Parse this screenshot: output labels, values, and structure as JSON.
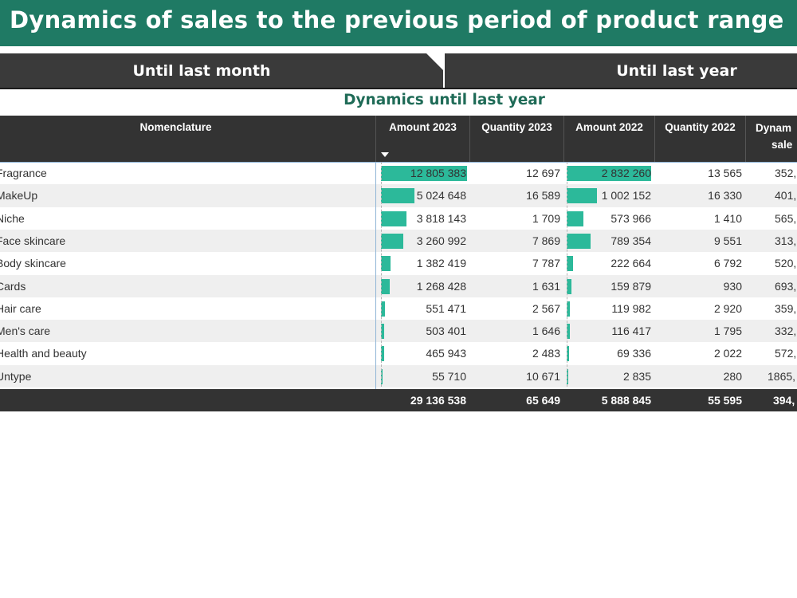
{
  "header": {
    "title": "Dynamics of sales to the previous period of product range"
  },
  "tabs": [
    {
      "label": "Until last month"
    },
    {
      "label": "Until last year"
    }
  ],
  "subtitle": "Dynamics until last year",
  "table": {
    "columns": {
      "name": "Nomenclature",
      "amount_2023": "Amount 2023",
      "quantity_2023": "Quantity 2023",
      "amount_2022": "Amount 2022",
      "quantity_2022": "Quantity 2022",
      "dynamics_line1": "Dynam",
      "dynamics_line2": "sale"
    },
    "rows": [
      {
        "name": "Fragrance",
        "amount_2023": "12 805 383",
        "quantity_2023": "12 697",
        "amount_2022": "2 832 260",
        "quantity_2022": "13 565",
        "dynamics": "352,",
        "amount_2023_value": 12805383,
        "amount_2022_value": 2832260
      },
      {
        "name": "MakeUp",
        "amount_2023": "5 024 648",
        "quantity_2023": "16 589",
        "amount_2022": "1 002 152",
        "quantity_2022": "16 330",
        "dynamics": "401,",
        "amount_2023_value": 5024648,
        "amount_2022_value": 1002152
      },
      {
        "name": "Niche",
        "amount_2023": "3 818 143",
        "quantity_2023": "1 709",
        "amount_2022": "573 966",
        "quantity_2022": "1 410",
        "dynamics": "565,",
        "amount_2023_value": 3818143,
        "amount_2022_value": 573966
      },
      {
        "name": "Face skincare",
        "amount_2023": "3 260 992",
        "quantity_2023": "7 869",
        "amount_2022": "789 354",
        "quantity_2022": "9 551",
        "dynamics": "313,",
        "amount_2023_value": 3260992,
        "amount_2022_value": 789354
      },
      {
        "name": "Body skincare",
        "amount_2023": "1 382 419",
        "quantity_2023": "7 787",
        "amount_2022": "222 664",
        "quantity_2022": "6 792",
        "dynamics": "520,",
        "amount_2023_value": 1382419,
        "amount_2022_value": 222664
      },
      {
        "name": "Cards",
        "amount_2023": "1 268 428",
        "quantity_2023": "1 631",
        "amount_2022": "159 879",
        "quantity_2022": "930",
        "dynamics": "693,",
        "amount_2023_value": 1268428,
        "amount_2022_value": 159879
      },
      {
        "name": "Hair care",
        "amount_2023": "551 471",
        "quantity_2023": "2 567",
        "amount_2022": "119 982",
        "quantity_2022": "2 920",
        "dynamics": "359,",
        "amount_2023_value": 551471,
        "amount_2022_value": 119982
      },
      {
        "name": "Men's care",
        "amount_2023": "503 401",
        "quantity_2023": "1 646",
        "amount_2022": "116 417",
        "quantity_2022": "1 795",
        "dynamics": "332,",
        "amount_2023_value": 503401,
        "amount_2022_value": 116417
      },
      {
        "name": "Health and beauty",
        "amount_2023": "465 943",
        "quantity_2023": "2 483",
        "amount_2022": "69 336",
        "quantity_2022": "2 022",
        "dynamics": "572,",
        "amount_2023_value": 465943,
        "amount_2022_value": 69336
      },
      {
        "name": "Untype",
        "amount_2023": "55 710",
        "quantity_2023": "10 671",
        "amount_2022": "2 835",
        "quantity_2022": "280",
        "dynamics": "1865,",
        "amount_2023_value": 55710,
        "amount_2022_value": 2835
      }
    ],
    "total": {
      "amount_2023": "29 136 538",
      "quantity_2023": "65 649",
      "amount_2022": "5 888 845",
      "quantity_2022": "55 595",
      "dynamics": "394,"
    }
  },
  "colors": {
    "title_bg": "#1f7a64",
    "bar": "#2cb99a",
    "header_bg": "#333333"
  }
}
